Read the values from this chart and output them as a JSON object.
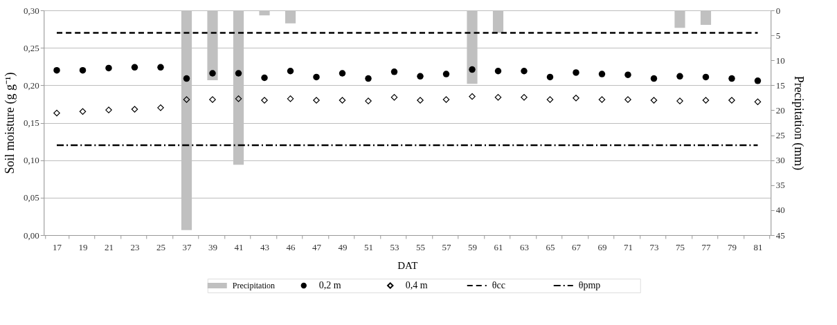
{
  "chart_data": {
    "type": "bar",
    "xlabel": "DAT",
    "ylabel": "Soil moisture (g g⁻¹)",
    "y2label": "Precipitation (mm)",
    "categories": [
      "17",
      "19",
      "21",
      "23",
      "25",
      "37",
      "39",
      "41",
      "43",
      "46",
      "47",
      "49",
      "51",
      "53",
      "55",
      "57",
      "59",
      "61",
      "63",
      "65",
      "67",
      "69",
      "71",
      "73",
      "75",
      "77",
      "79",
      "81"
    ],
    "series": [
      {
        "name": "Precipitation",
        "axis": "y2",
        "color": "#c0c0c0",
        "values": [
          null,
          null,
          null,
          null,
          null,
          44,
          14,
          30.9,
          1,
          2.6,
          null,
          null,
          null,
          null,
          null,
          null,
          14.7,
          4.5,
          null,
          null,
          null,
          null,
          null,
          null,
          3.5,
          2.9,
          null,
          null
        ]
      },
      {
        "name": "0,2 m",
        "type": "scatter",
        "marker": "circle",
        "color": "#000000",
        "values": [
          0.22,
          0.22,
          0.223,
          0.224,
          0.224,
          0.209,
          0.216,
          0.216,
          0.21,
          0.219,
          0.211,
          0.216,
          0.209,
          0.218,
          0.212,
          0.215,
          0.221,
          0.219,
          0.219,
          0.211,
          0.217,
          0.215,
          0.214,
          0.209,
          0.212,
          0.211,
          0.209,
          0.206
        ]
      },
      {
        "name": "0,4 m",
        "type": "scatter",
        "marker": "diamond",
        "color": "#000000",
        "values": [
          0.163,
          0.165,
          0.167,
          0.168,
          0.17,
          0.181,
          0.181,
          0.182,
          0.18,
          0.182,
          0.18,
          0.18,
          0.179,
          0.184,
          0.18,
          0.181,
          0.185,
          0.184,
          0.184,
          0.181,
          0.183,
          0.181,
          0.181,
          0.18,
          0.179,
          0.18,
          0.18,
          0.178
        ]
      },
      {
        "name": "θcc",
        "type": "line",
        "line_style": "dashed",
        "color": "#000000",
        "values": [
          0.27,
          0.27,
          0.27,
          0.27,
          0.27,
          0.27,
          0.27,
          0.27,
          0.27,
          0.27,
          0.27,
          0.27,
          0.27,
          0.27,
          0.27,
          0.27,
          0.27,
          0.27,
          0.27,
          0.27,
          0.27,
          0.27,
          0.27,
          0.27,
          0.27,
          0.27,
          0.27,
          0.27
        ]
      },
      {
        "name": "θpmp",
        "type": "line",
        "line_style": "dashdot",
        "color": "#000000",
        "values": [
          0.12,
          0.12,
          0.12,
          0.12,
          0.12,
          0.12,
          0.12,
          0.12,
          0.12,
          0.12,
          0.12,
          0.12,
          0.12,
          0.12,
          0.12,
          0.12,
          0.12,
          0.12,
          0.12,
          0.12,
          0.12,
          0.12,
          0.12,
          0.12,
          0.12,
          0.12,
          0.12,
          0.12
        ]
      }
    ],
    "ylim": [
      0,
      0.3
    ],
    "yticks": [
      {
        "value": 0,
        "label": "0,00"
      },
      {
        "value": 0.05,
        "label": "0,05"
      },
      {
        "value": 0.1,
        "label": "0,10"
      },
      {
        "value": 0.15,
        "label": "0,15"
      },
      {
        "value": 0.2,
        "label": "0,20"
      },
      {
        "value": 0.25,
        "label": "0,25"
      },
      {
        "value": 0.3,
        "label": "0,30"
      }
    ],
    "y2lim": [
      45,
      0
    ],
    "y2ticks": [
      0,
      5,
      10,
      15,
      20,
      25,
      30,
      35,
      40,
      45
    ],
    "grid": "y",
    "legend": "bottom"
  }
}
